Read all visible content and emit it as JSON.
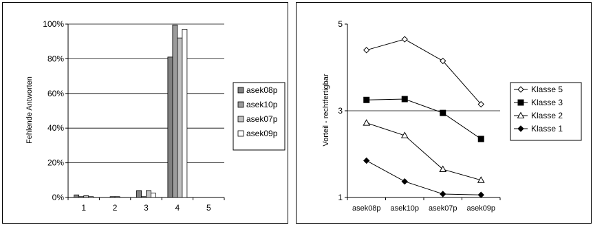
{
  "chart_data": [
    {
      "type": "bar",
      "categories": [
        "1",
        "2",
        "3",
        "4",
        "5"
      ],
      "ylabel": "Fehlende Antworten",
      "ylim": [
        0,
        100
      ],
      "yticks": [
        "0%",
        "20%",
        "40%",
        "60%",
        "80%",
        "100%"
      ],
      "grid": true,
      "legend_position": "right",
      "series": [
        {
          "name": "asek08p",
          "color": "#808080",
          "values": [
            1.5,
            0,
            4,
            81,
            0
          ]
        },
        {
          "name": "asek10p",
          "color": "#9b9b9b",
          "values": [
            0.5,
            0.5,
            0.5,
            99.5,
            0
          ]
        },
        {
          "name": "asek07p",
          "color": "#c0c0c0",
          "values": [
            1,
            0.5,
            4,
            92,
            0
          ]
        },
        {
          "name": "asek09p",
          "color": "#ffffff",
          "values": [
            0.5,
            0,
            2.5,
            97,
            0
          ]
        }
      ]
    },
    {
      "type": "line",
      "categories": [
        "asek08p",
        "asek10p",
        "asek07p",
        "asek09p"
      ],
      "ylabel": "Vorteil - rechtfertigbar",
      "ylim": [
        1,
        5
      ],
      "yticks": [
        "1",
        "3",
        "5"
      ],
      "grid": true,
      "legend_position": "right",
      "series": [
        {
          "name": "Klasse 5",
          "marker": "diamond-open",
          "values": [
            4.4,
            4.65,
            4.15,
            3.15
          ]
        },
        {
          "name": "Klasse 3",
          "marker": "square-filled",
          "values": [
            3.25,
            3.27,
            2.95,
            2.35
          ]
        },
        {
          "name": "Klasse 2",
          "marker": "triangle-open",
          "values": [
            2.72,
            2.43,
            1.65,
            1.4
          ]
        },
        {
          "name": "Klasse 1",
          "marker": "diamond-filled",
          "values": [
            1.85,
            1.37,
            1.08,
            1.06
          ]
        }
      ]
    }
  ]
}
